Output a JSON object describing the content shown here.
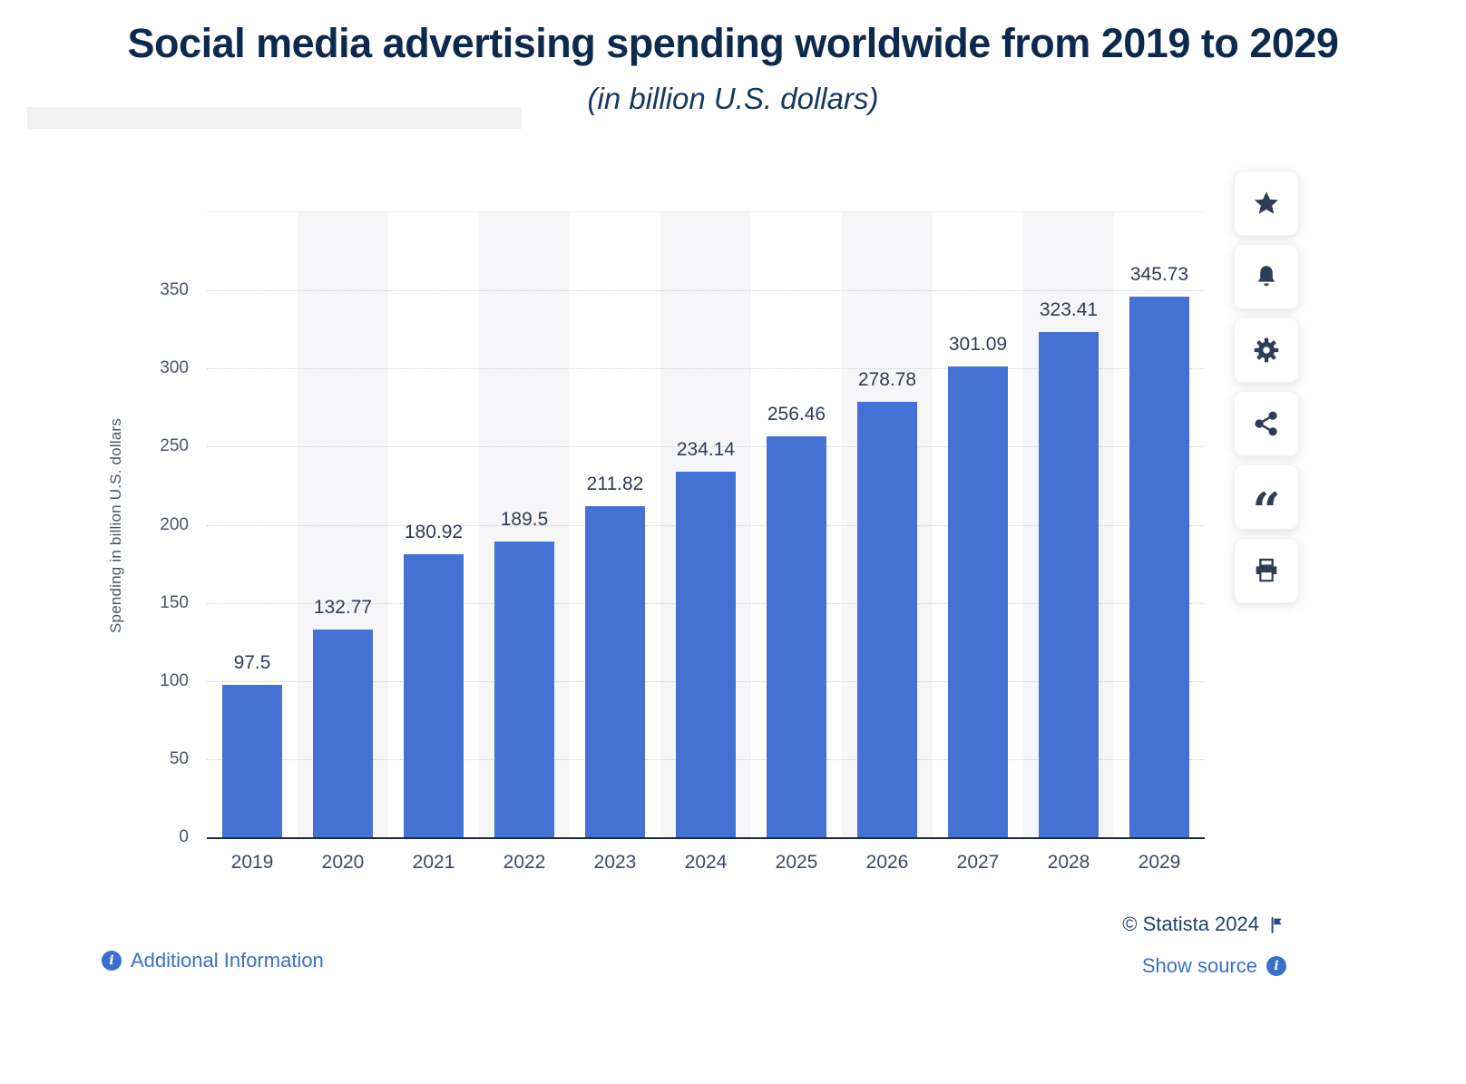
{
  "header": {
    "title": "Social media advertising spending worldwide from 2019 to 2029",
    "subtitle": "(in billion U.S. dollars)"
  },
  "chart_data": {
    "type": "bar",
    "title": "Social media advertising spending worldwide from 2019 to 2029 (in billion U.S. dollars)",
    "categories": [
      "2019",
      "2020",
      "2021",
      "2022",
      "2023",
      "2024",
      "2025",
      "2026",
      "2027",
      "2028",
      "2029"
    ],
    "values": [
      97.5,
      132.77,
      180.92,
      189.5,
      211.82,
      234.14,
      256.46,
      278.78,
      301.09,
      323.41,
      345.73
    ],
    "value_labels": [
      "97.5",
      "132.77",
      "180.92",
      "189.5",
      "211.82",
      "234.14",
      "256.46",
      "278.78",
      "301.09",
      "323.41",
      "345.73"
    ],
    "xlabel": "",
    "ylabel": "Spending in billion U.S. dollars",
    "ylim": [
      0,
      400
    ],
    "yticks": [
      0,
      50,
      100,
      150,
      200,
      250,
      300,
      350
    ],
    "grid": true,
    "legend_position": "none",
    "bar_color": "#4472d4",
    "band_color": "#f6f6f8"
  },
  "toolbar": {
    "buttons": [
      {
        "label": "favorite",
        "icon": "star-icon"
      },
      {
        "label": "notifications",
        "icon": "bell-icon"
      },
      {
        "label": "settings",
        "icon": "gear-icon"
      },
      {
        "label": "share",
        "icon": "share-icon"
      },
      {
        "label": "cite",
        "icon": "quote-icon"
      },
      {
        "label": "print",
        "icon": "print-icon"
      }
    ]
  },
  "footer": {
    "additional_information": "Additional Information",
    "copyright": "© Statista 2024",
    "show_source": "Show source"
  }
}
